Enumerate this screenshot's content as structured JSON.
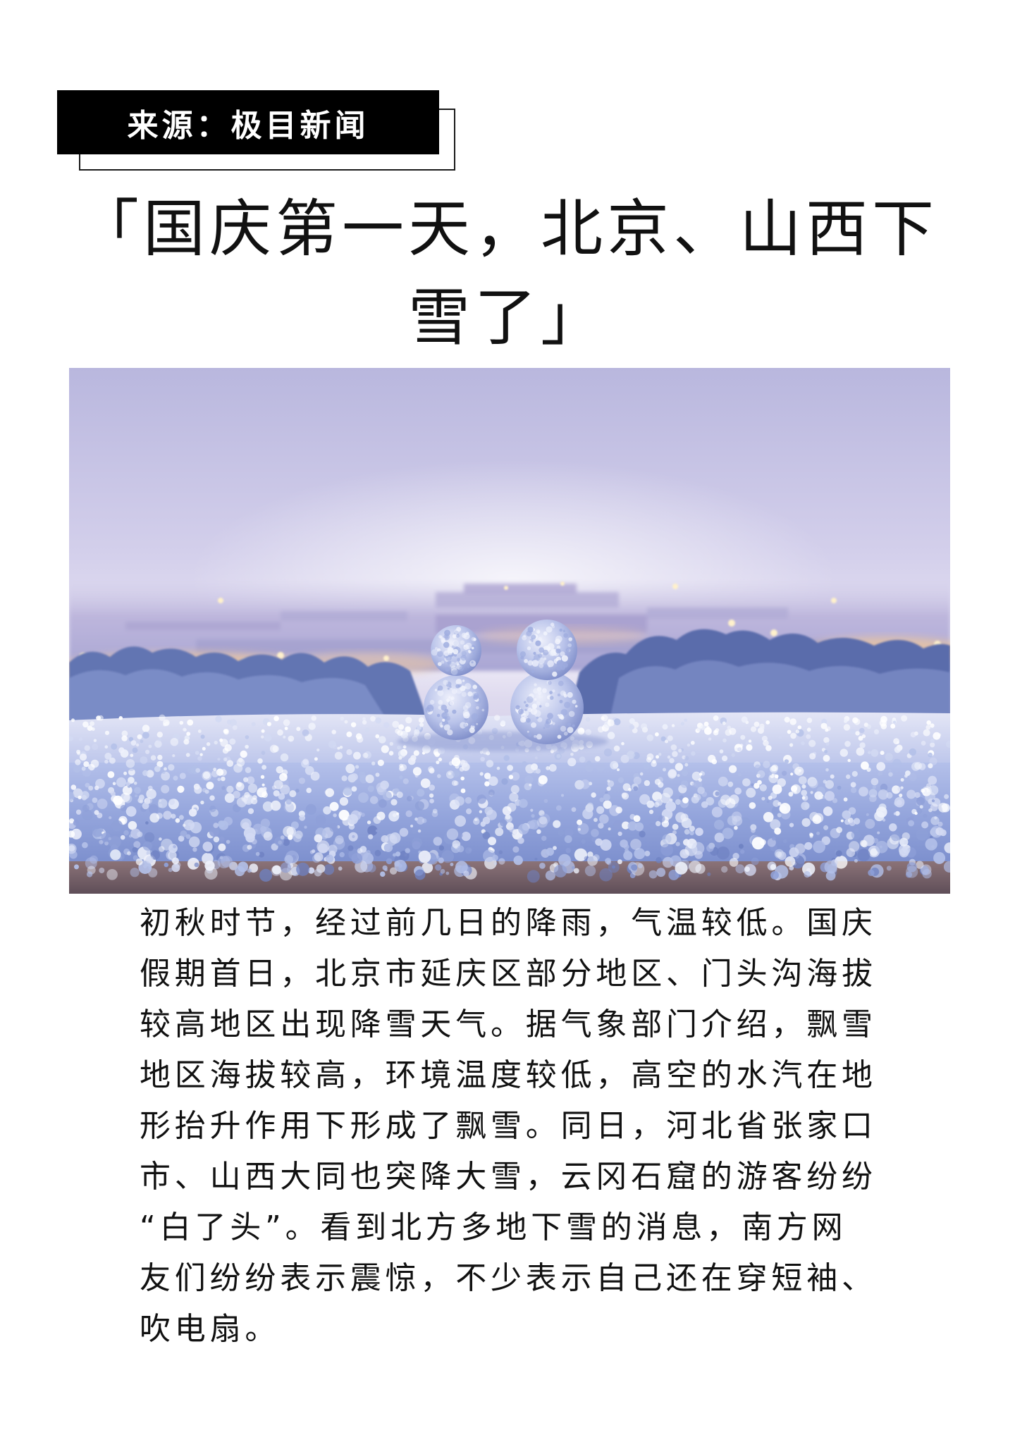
{
  "source_label": {
    "text": "来源：极目新闻"
  },
  "title": {
    "lines": [
      "「国庆第一天，北京、山西下",
      "雪了」"
    ]
  },
  "body": {
    "lines": [
      "初秋时节，经过前几日的降雨，气温较低。国庆",
      "假期首日，北京市延庆区部分地区、门头沟海拔",
      "较高地区出现降雪天气。据气象部门介绍，飘雪",
      "地区海拔较高，环境温度较低，高空的水汽在地",
      "形抬升作用下形成了飘雪。同日，河北省张家口",
      "市、山西大同也突降大雪，云冈石窟的游客纷纷",
      "“白了头”。看到北方多地下雪的消息，南方网",
      "友们纷纷表示震惊，不少表示自己还在穿短袖、",
      "吹电扇。"
    ]
  },
  "colors": {
    "label_background": "#000000",
    "label_text": "#ffffff",
    "body_text": "#111111",
    "page_background": "#ffffff"
  }
}
